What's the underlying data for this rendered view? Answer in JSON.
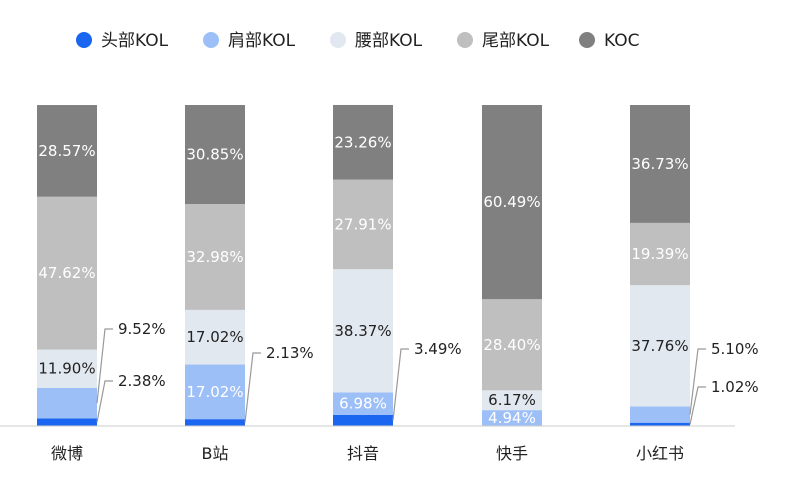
{
  "chart_data": {
    "type": "bar",
    "stacked": true,
    "normalized_percent": true,
    "categories": [
      "微博",
      "B站",
      "抖音",
      "快手",
      "小红书"
    ],
    "series": [
      {
        "name": "头部KOL",
        "color": "#1a66f0",
        "values": [
          2.38,
          2.13,
          3.49,
          0.0,
          1.02
        ],
        "labels": [
          "2.38%",
          "2.13%",
          "3.49%",
          "",
          "1.02%"
        ]
      },
      {
        "name": "肩部KOL",
        "color": "#9dbff7",
        "values": [
          9.52,
          17.02,
          6.98,
          4.94,
          5.1
        ],
        "labels": [
          "9.52%",
          "17.02%",
          "6.98%",
          "4.94%",
          "5.10%"
        ]
      },
      {
        "name": "腰部KOL",
        "color": "#e2e8f0",
        "values": [
          11.9,
          17.02,
          38.37,
          6.17,
          37.76
        ],
        "labels": [
          "11.90%",
          "17.02%",
          "38.37%",
          "6.17%",
          "37.76%"
        ]
      },
      {
        "name": "尾部KOL",
        "color": "#bfbfbf",
        "values": [
          47.62,
          32.98,
          27.91,
          28.4,
          19.39
        ],
        "labels": [
          "47.62%",
          "32.98%",
          "27.91%",
          "28.40%",
          "19.39%"
        ]
      },
      {
        "name": "KOC",
        "color": "#808080",
        "values": [
          28.57,
          30.85,
          23.26,
          60.49,
          36.73
        ],
        "labels": [
          "28.57%",
          "30.85%",
          "23.26%",
          "60.49%",
          "36.73%"
        ]
      }
    ],
    "ylim": [
      0,
      100
    ],
    "legend_position": "top-left",
    "grid": false,
    "callouts": [
      {
        "category": 0,
        "series": 0
      },
      {
        "category": 0,
        "series": 1
      },
      {
        "category": 1,
        "series": 0
      },
      {
        "category": 2,
        "series": 0
      },
      {
        "category": 4,
        "series": 0
      },
      {
        "category": 4,
        "series": 1
      }
    ]
  }
}
